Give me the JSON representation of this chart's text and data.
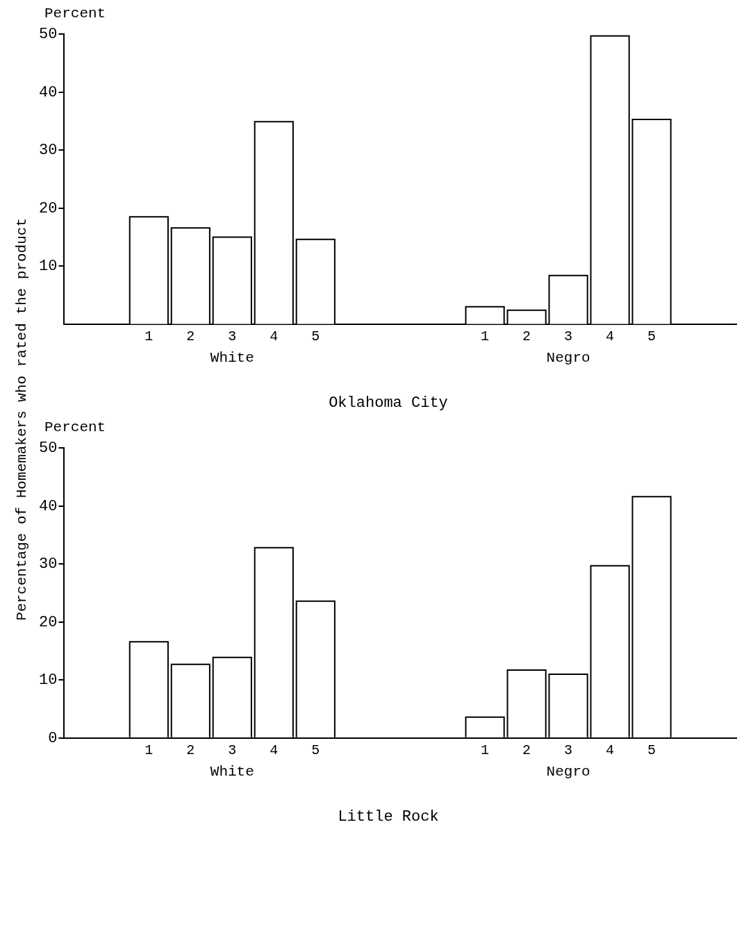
{
  "chart_data": [
    {
      "type": "bar",
      "title": "Oklahoma City",
      "ylabel": "Percent",
      "annotations": [
        "Percentage of Homemakers who rated the product"
      ],
      "categories": [
        "White",
        "Negro"
      ],
      "ylim": [
        0,
        50
      ],
      "yticks": [
        10,
        20,
        30,
        40,
        50
      ],
      "grid": false,
      "legend": false,
      "series": [
        {
          "name": "1",
          "color": "#ffffff",
          "values": [
            18.5,
            3.0
          ]
        },
        {
          "name": "2",
          "color": "#ffffff",
          "values": [
            16.6,
            2.4
          ]
        },
        {
          "name": "3",
          "color": "#ffffff",
          "values": [
            15.0,
            8.4
          ]
        },
        {
          "name": "4",
          "color": "#ffffff",
          "values": [
            34.9,
            49.7
          ]
        },
        {
          "name": "5",
          "color": "#ffffff",
          "values": [
            14.6,
            35.3
          ]
        }
      ]
    },
    {
      "type": "bar",
      "title": "Little Rock",
      "ylabel": "Percent",
      "categories": [
        "White",
        "Negro"
      ],
      "ylim": [
        0,
        50
      ],
      "yticks": [
        0,
        10,
        20,
        30,
        40,
        50
      ],
      "grid": false,
      "legend": false,
      "series": [
        {
          "name": "1",
          "color": "#ffffff",
          "values": [
            16.6,
            3.6
          ]
        },
        {
          "name": "2",
          "color": "#ffffff",
          "values": [
            12.7,
            11.7
          ]
        },
        {
          "name": "3",
          "color": "#ffffff",
          "values": [
            13.9,
            11.0
          ]
        },
        {
          "name": "4",
          "color": "#ffffff",
          "values": [
            32.8,
            29.7
          ]
        },
        {
          "name": "5",
          "color": "#ffffff",
          "values": [
            23.6,
            41.6
          ]
        }
      ]
    }
  ]
}
